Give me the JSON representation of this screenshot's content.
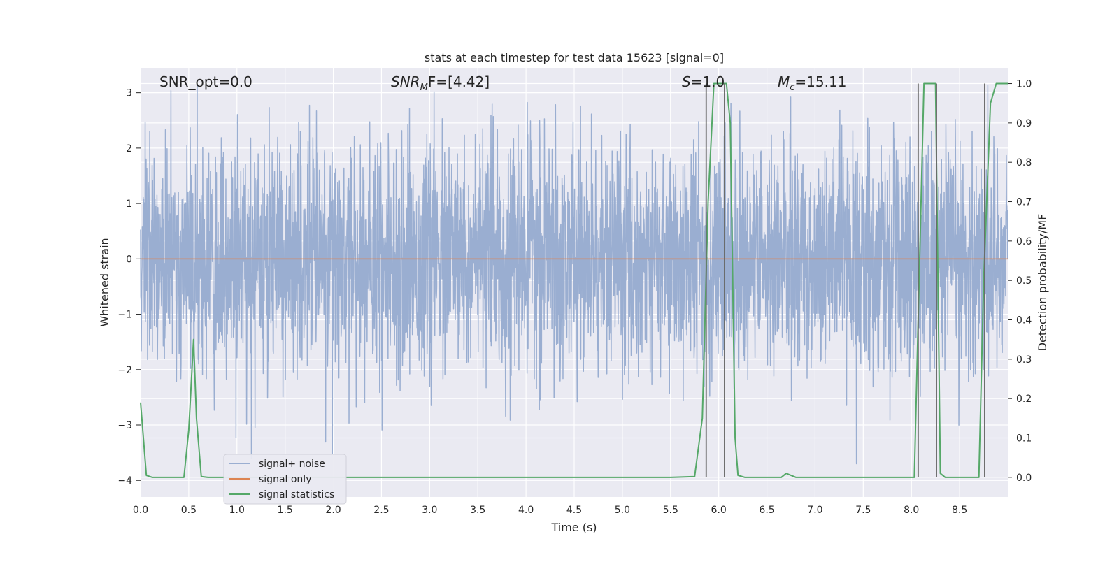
{
  "chart_data": {
    "type": "line",
    "title": "stats at each timestep for test data 15623 [signal=0]",
    "xlabel": "Time (s)",
    "ylabel": "Whitened strain",
    "y2label": "Detection probability/MF",
    "xlim": [
      0.0,
      9.0
    ],
    "ylim": [
      -4.3,
      3.45
    ],
    "y2lim": [
      -0.05,
      1.04
    ],
    "xticks": [
      "0.0",
      "0.5",
      "1.0",
      "1.5",
      "2.0",
      "2.5",
      "3.0",
      "3.5",
      "4.0",
      "4.5",
      "5.0",
      "5.5",
      "6.0",
      "6.5",
      "7.0",
      "7.5",
      "8.0",
      "8.5"
    ],
    "yticks": [
      "−4",
      "−3",
      "−2",
      "−1",
      "0",
      "1",
      "2",
      "3"
    ],
    "y2ticks": [
      "0.0",
      "0.1",
      "0.2",
      "0.3",
      "0.4",
      "0.5",
      "0.6",
      "0.7",
      "0.8",
      "0.9",
      "1.0"
    ],
    "grid": true,
    "legend_position": "lower-left",
    "annotations": [
      {
        "id": "snr-opt",
        "text": "SNR_opt=0.0"
      },
      {
        "id": "snr-mf",
        "prefix": "SNR",
        "sub": "M",
        "suffix": "F=[4.42]"
      },
      {
        "id": "s-stat",
        "prefix": "S",
        "suffix": "=1.0"
      },
      {
        "id": "mc",
        "prefix": "M",
        "sub": "c",
        "suffix": "=15.11"
      }
    ],
    "series": [
      {
        "name": "signal+ noise",
        "color": "#9aaed1",
        "style": "dense-noise",
        "amplitude_sigma": 1.0,
        "approx_range": [
          -3.7,
          3.4
        ]
      },
      {
        "name": "signal only",
        "color": "#dd8452",
        "x": [
          0.0,
          9.0
        ],
        "y": [
          0.0,
          0.0
        ]
      },
      {
        "name": "signal statistics",
        "color": "#55a868",
        "axis": "right",
        "x": [
          0.0,
          0.06,
          0.12,
          0.45,
          0.5,
          0.55,
          0.58,
          0.63,
          0.7,
          5.5,
          5.75,
          5.83,
          5.89,
          5.95,
          6.08,
          6.12,
          6.17,
          6.2,
          6.27,
          6.65,
          6.7,
          6.8,
          8.03,
          8.08,
          8.13,
          8.25,
          8.3,
          8.35,
          8.7,
          8.75,
          8.82,
          8.88,
          9.0
        ],
        "y": [
          0.19,
          0.005,
          0.0,
          0.0,
          0.12,
          0.35,
          0.15,
          0.002,
          0.0,
          0.0,
          0.002,
          0.15,
          0.7,
          1.0,
          1.0,
          0.9,
          0.1,
          0.005,
          0.0,
          0.0,
          0.01,
          0.0,
          0.0,
          0.5,
          1.0,
          1.0,
          0.01,
          0.0,
          0.0,
          0.5,
          0.95,
          1.0,
          1.0
        ]
      }
    ],
    "vlines": [
      5.87,
      6.06,
      8.07,
      8.26,
      8.76
    ],
    "vline_color": "#696969",
    "background": "#eaeaf2",
    "grid_color": "#ffffff"
  }
}
